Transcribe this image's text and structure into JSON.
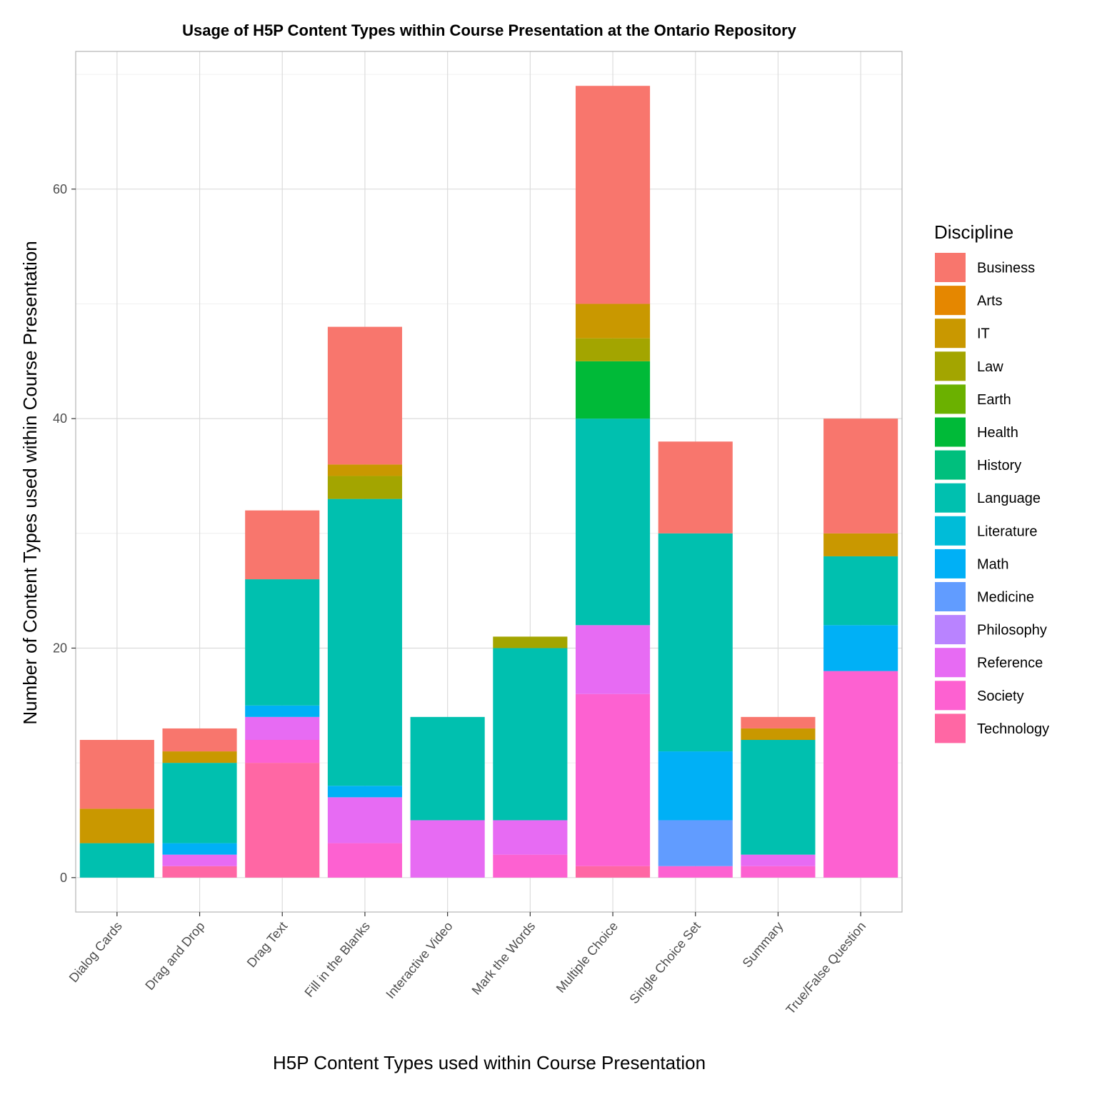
{
  "chart_data": {
    "type": "bar",
    "stacked": true,
    "title": "Usage of H5P Content Types within Course Presentation at the Ontario Repository",
    "xlabel": "H5P Content Types used within Course Presentation",
    "ylabel": "Number of Content Types used within Course Presentation",
    "ylim": [
      -3,
      72
    ],
    "yticks": [
      0,
      20,
      40,
      60
    ],
    "grid": true,
    "legend_title": "Discipline",
    "legend_position": "right",
    "categories": [
      "Dialog Cards",
      "Drag and Drop",
      "Drag Text",
      "Fill in the Blanks",
      "Interactive Video",
      "Mark the Words",
      "Multiple Choice",
      "Single Choice Set",
      "Summary",
      "True/False Question"
    ],
    "series": [
      {
        "name": "Business",
        "color": "#F8766D",
        "values": [
          6,
          2,
          6,
          12,
          0,
          0,
          19,
          8,
          1,
          10
        ]
      },
      {
        "name": "Arts",
        "color": "#E58700",
        "values": [
          0,
          0,
          0,
          0,
          0,
          0,
          0,
          0,
          0,
          0
        ]
      },
      {
        "name": "IT",
        "color": "#C99800",
        "values": [
          3,
          1,
          0,
          1,
          0,
          0,
          3,
          0,
          1,
          2
        ]
      },
      {
        "name": "Law",
        "color": "#A3A500",
        "values": [
          0,
          0,
          0,
          2,
          0,
          1,
          2,
          0,
          0,
          0
        ]
      },
      {
        "name": "Earth",
        "color": "#6BB100",
        "values": [
          0,
          0,
          0,
          0,
          0,
          0,
          0,
          0,
          0,
          0
        ]
      },
      {
        "name": "Health",
        "color": "#00BA38",
        "values": [
          0,
          0,
          0,
          0,
          0,
          0,
          5,
          0,
          0,
          0
        ]
      },
      {
        "name": "History",
        "color": "#00BF7D",
        "values": [
          0,
          0,
          0,
          0,
          0,
          0,
          0,
          0,
          0,
          0
        ]
      },
      {
        "name": "Language",
        "color": "#00C0AF",
        "values": [
          3,
          7,
          11,
          25,
          9,
          15,
          18,
          19,
          10,
          6
        ]
      },
      {
        "name": "Literature",
        "color": "#00BCD8",
        "values": [
          0,
          0,
          0,
          0,
          0,
          0,
          0,
          0,
          0,
          0
        ]
      },
      {
        "name": "Math",
        "color": "#00B0F6",
        "values": [
          0,
          1,
          1,
          1,
          0,
          0,
          0,
          6,
          0,
          4
        ]
      },
      {
        "name": "Medicine",
        "color": "#619CFF",
        "values": [
          0,
          0,
          0,
          0,
          0,
          0,
          0,
          4,
          0,
          0
        ]
      },
      {
        "name": "Philosophy",
        "color": "#B983FF",
        "values": [
          0,
          0,
          0,
          0,
          0,
          0,
          0,
          0,
          0,
          0
        ]
      },
      {
        "name": "Reference",
        "color": "#E76BF3",
        "values": [
          0,
          1,
          2,
          4,
          5,
          3,
          6,
          0,
          1,
          0
        ]
      },
      {
        "name": "Society",
        "color": "#FD61D1",
        "values": [
          0,
          0,
          2,
          3,
          0,
          2,
          15,
          1,
          1,
          18
        ]
      },
      {
        "name": "Technology",
        "color": "#FF67A4",
        "values": [
          0,
          1,
          10,
          0,
          0,
          0,
          1,
          0,
          0,
          0
        ]
      }
    ]
  }
}
